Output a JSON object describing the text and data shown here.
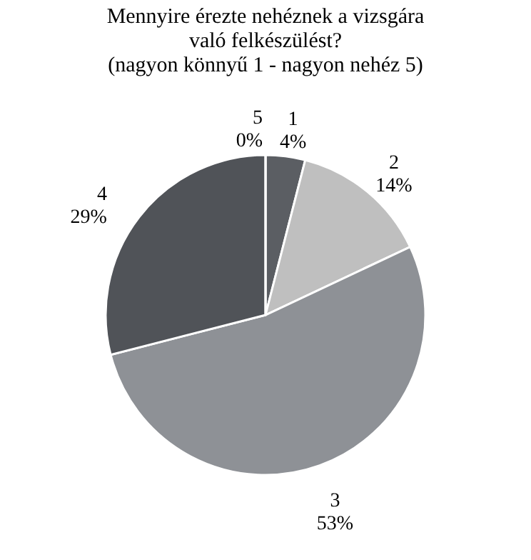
{
  "chart_data": {
    "type": "pie",
    "title": [
      "Mennyire érezte nehéznek a vizsgára",
      "való felkészülést?",
      "(nagyon könnyű 1 - nagyon nehéz 5)"
    ],
    "categories": [
      "1",
      "2",
      "3",
      "4",
      "5"
    ],
    "values": [
      4,
      14,
      53,
      29,
      0
    ],
    "value_labels": [
      "4%",
      "14%",
      "53%",
      "29%",
      "0%"
    ],
    "colors": [
      "#5b5e63",
      "#bfbfbf",
      "#8e9196",
      "#505358",
      "#3a3d42"
    ],
    "legend": false
  }
}
